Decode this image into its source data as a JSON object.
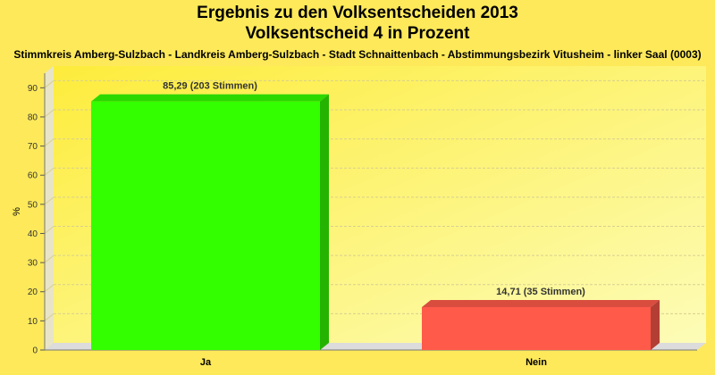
{
  "title": "Ergebnis zu den Volksentscheiden 2013",
  "subtitle": "Volksentscheid 4 in Prozent",
  "caption": "Stimmkreis Amberg-Sulzbach - Landkreis Amberg-Sulzbach - Stadt Schnaittenbach - Abstimmungsbezirk Vitusheim - linker Saal (0003)",
  "colors": {
    "background": "#fde95a",
    "ja": "#33ff00",
    "nein": "#ff5a4a"
  },
  "chart_data": {
    "type": "bar",
    "categories": [
      "Ja",
      "Nein"
    ],
    "values": [
      85.29,
      14.71
    ],
    "data_labels": [
      "85,29 (203 Stimmen)",
      "14,71 (35 Stimmen)"
    ],
    "colors": [
      "#33ff00",
      "#ff5a4a"
    ],
    "title": "Ergebnis zu den Volksentscheiden 2013",
    "subtitle": "Volksentscheid 4 in Prozent",
    "xlabel": "",
    "ylabel": "%",
    "ylim": [
      0,
      95
    ],
    "yticks": [
      "0",
      "10",
      "20",
      "30",
      "40",
      "50",
      "60",
      "70",
      "80",
      "90"
    ],
    "grid": true,
    "three_d": true
  }
}
